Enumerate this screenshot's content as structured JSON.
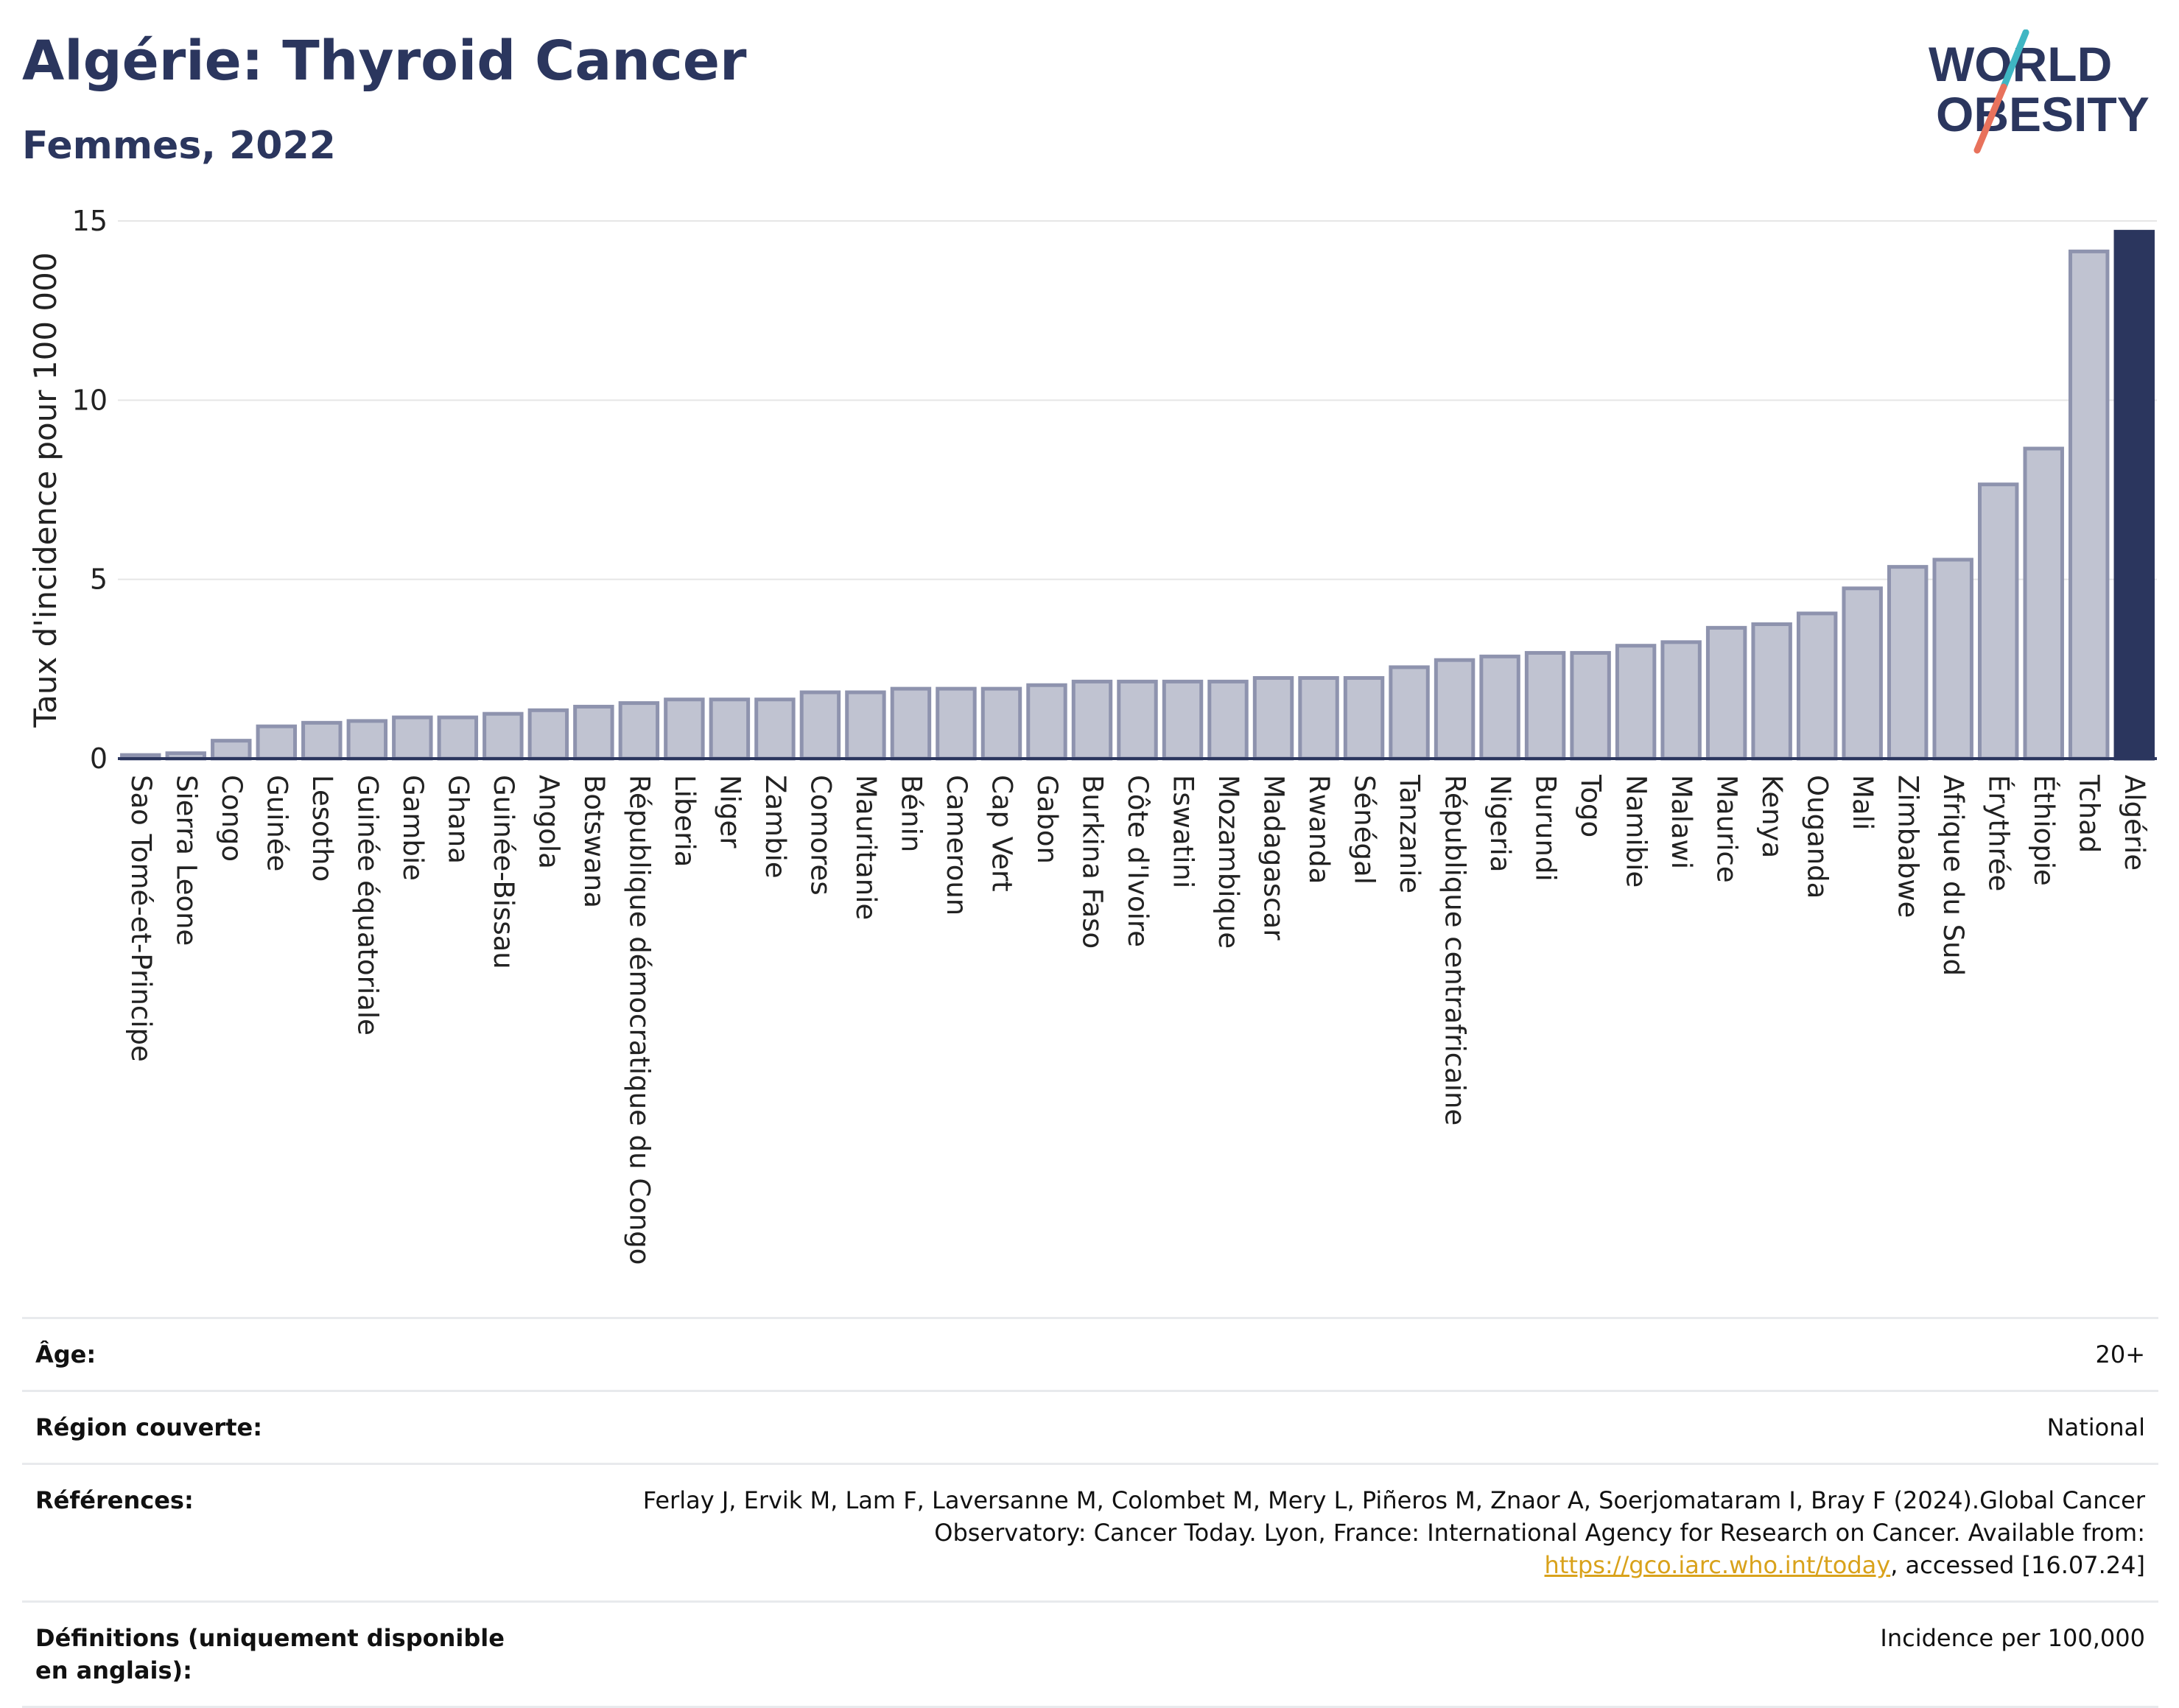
{
  "header": {
    "title": "Algérie: Thyroid Cancer",
    "subtitle": "Femmes, 2022"
  },
  "logo": {
    "line1": "WORLD",
    "line2": "OBESITY",
    "slash_colors": [
      "#3fb6c3",
      "#e8725c"
    ]
  },
  "chart_data": {
    "type": "bar",
    "ylabel": "Taux d'incidence pour 100 000",
    "ylim": [
      0,
      15
    ],
    "yticks": [
      0,
      5,
      10,
      15
    ],
    "grid": true,
    "categories": [
      "Sao Tomé-et-Principe",
      "Sierra Leone",
      "Congo",
      "Guinée",
      "Lesotho",
      "Guinée équatoriale",
      "Gambie",
      "Ghana",
      "Guinée-Bissau",
      "Angola",
      "Botswana",
      "République démocratique du Congo",
      "Liberia",
      "Niger",
      "Zambie",
      "Comores",
      "Mauritanie",
      "Bénin",
      "Cameroun",
      "Cap Vert",
      "Gabon",
      "Burkina Faso",
      "Côte d'Ivoire",
      "Eswatini",
      "Mozambique",
      "Madagascar",
      "Rwanda",
      "Sénégal",
      "Tanzanie",
      "République centrafricaine",
      "Nigeria",
      "Burundi",
      "Togo",
      "Namibie",
      "Malawi",
      "Maurice",
      "Kenya",
      "Ouganda",
      "Mali",
      "Zimbabwe",
      "Afrique du Sud",
      "Érythrée",
      "Éthiopie",
      "Tchad",
      "Algérie"
    ],
    "values": [
      0.1,
      0.15,
      0.5,
      0.9,
      1.0,
      1.05,
      1.15,
      1.15,
      1.25,
      1.35,
      1.45,
      1.55,
      1.65,
      1.65,
      1.65,
      1.85,
      1.85,
      1.95,
      1.95,
      1.95,
      2.05,
      2.15,
      2.15,
      2.15,
      2.15,
      2.25,
      2.25,
      2.25,
      2.55,
      2.75,
      2.85,
      2.95,
      2.95,
      3.15,
      3.25,
      3.65,
      3.75,
      4.05,
      4.75,
      5.35,
      5.55,
      7.65,
      8.65,
      14.15,
      14.7
    ],
    "highlight": "Algérie",
    "colors": {
      "bar": "#c0c3d1",
      "bar_border": "#8e93ae",
      "highlight": "#2b365e",
      "grid": "#e6e6e6",
      "axis": "#2b365e"
    }
  },
  "meta": {
    "age_label": "Âge:",
    "age_value": "20+",
    "region_label": "Région couverte:",
    "region_value": "National",
    "refs_label": "Références:",
    "refs_text1": "Ferlay J, Ervik M, Lam F, Laversanne M, Colombet M, Mery L, Piñeros M, Znaor A, Soerjomataram I, Bray F (2024).Global Cancer Observatory: Cancer Today. Lyon, France: International Agency for Research on Cancer. Available from: ",
    "refs_link": "https://gco.iarc.who.int/today",
    "refs_text2": ", accessed [16.07.24]",
    "defs_label": "Définitions (uniquement disponible en anglais):",
    "defs_value": "Incidence per 100,000"
  }
}
